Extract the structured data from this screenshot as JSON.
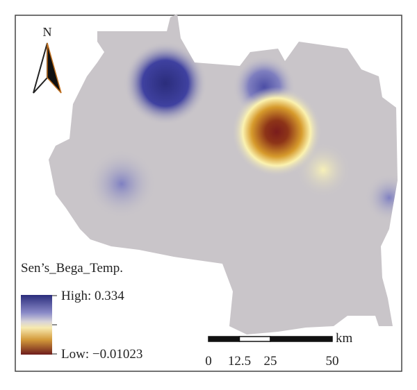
{
  "north_label": "N",
  "legend": {
    "title": "Sen’s_Bega_Temp.",
    "high": "High: 0.334",
    "low": "Low: −0.01023"
  },
  "scale_bar": {
    "unit": "km",
    "ticks": [
      0,
      12.5,
      25,
      50
    ]
  }
}
